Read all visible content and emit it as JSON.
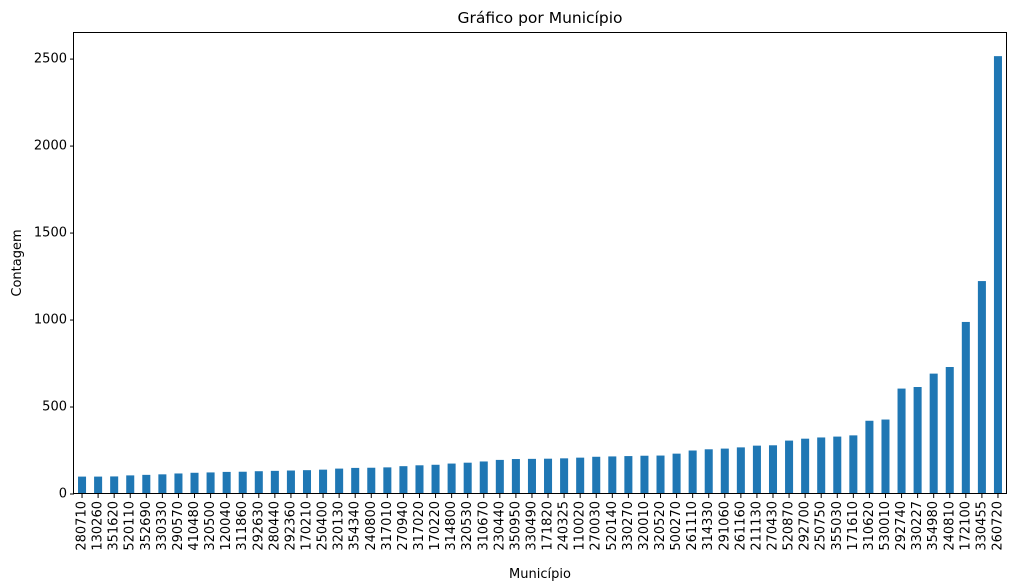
{
  "chart_data": {
    "type": "bar",
    "title": "Gráfico por Município",
    "xlabel": "Município",
    "ylabel": "Contagem",
    "ylim": [
      0,
      2650
    ],
    "yticks": [
      0,
      500,
      1000,
      1500,
      2000,
      2500
    ],
    "grid": false,
    "legend": "none",
    "bar_color": "#1f77b4",
    "categories": [
      "280710",
      "130260",
      "351620",
      "520110",
      "352690",
      "330330",
      "290570",
      "410480",
      "320500",
      "120040",
      "311860",
      "292630",
      "280440",
      "292360",
      "170210",
      "250400",
      "320130",
      "354340",
      "240800",
      "317010",
      "270940",
      "317020",
      "170220",
      "314800",
      "320530",
      "310670",
      "230440",
      "350950",
      "330490",
      "171820",
      "240325",
      "110020",
      "270030",
      "520140",
      "330270",
      "320010",
      "320520",
      "500270",
      "261110",
      "314330",
      "291060",
      "261160",
      "211130",
      "270430",
      "520870",
      "292700",
      "250750",
      "355030",
      "171610",
      "310620",
      "530010",
      "292740",
      "330227",
      "354980",
      "240810",
      "172100",
      "330455",
      "260720"
    ],
    "values": [
      100,
      100,
      101,
      107,
      110,
      113,
      118,
      122,
      124,
      127,
      128,
      131,
      133,
      135,
      137,
      140,
      146,
      150,
      151,
      153,
      160,
      165,
      168,
      175,
      180,
      187,
      196,
      201,
      202,
      203,
      205,
      209,
      214,
      216,
      218,
      220,
      221,
      232,
      250,
      257,
      261,
      268,
      278,
      280,
      307,
      318,
      325,
      330,
      337,
      421,
      428,
      606,
      615,
      692,
      730,
      989,
      1224,
      2517
    ]
  }
}
